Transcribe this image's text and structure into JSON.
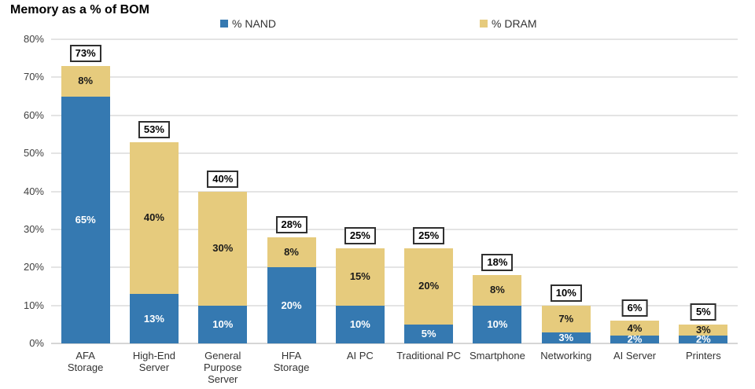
{
  "title": "Memory as a % of BOM",
  "legend": {
    "nand_label": "% NAND",
    "dram_label": "% DRAM"
  },
  "colors": {
    "nand": "#3579B1",
    "dram": "#E6CB7D",
    "nand_label_text": "#FFFFFF",
    "dram_label_text": "#1A1A1A",
    "gridline": "#E4E4E4",
    "baseline": "#D6D6D6"
  },
  "chart_data": {
    "type": "bar",
    "stacked": true,
    "title": "Memory as a % of BOM",
    "categories": [
      "AFA Storage",
      "High-End Server",
      "General Purpose Server",
      "HFA Storage",
      "AI PC",
      "Traditional PC",
      "Smartphone",
      "Networking",
      "AI Server",
      "Printers"
    ],
    "category_lines": [
      [
        "AFA",
        "Storage"
      ],
      [
        "High-End",
        "Server"
      ],
      [
        "General",
        "Purpose",
        "Server"
      ],
      [
        "HFA",
        "Storage"
      ],
      [
        "AI PC"
      ],
      [
        "Traditional PC"
      ],
      [
        "Smartphone"
      ],
      [
        "Networking"
      ],
      [
        "AI Server"
      ],
      [
        "Printers"
      ]
    ],
    "series": [
      {
        "name": "% NAND",
        "color": "#3579B1",
        "label_color": "#FFFFFF",
        "values": [
          65,
          13,
          10,
          20,
          10,
          5,
          10,
          3,
          2,
          2
        ]
      },
      {
        "name": "% DRAM",
        "color": "#E6CB7D",
        "label_color": "#1A1A1A",
        "values": [
          8,
          40,
          30,
          8,
          15,
          20,
          8,
          7,
          4,
          3
        ]
      }
    ],
    "totals": [
      73,
      53,
      40,
      28,
      25,
      25,
      18,
      10,
      6,
      5
    ],
    "xlabel": "",
    "ylabel": "",
    "ylim": [
      0,
      80
    ],
    "yticks": [
      0,
      10,
      20,
      30,
      40,
      50,
      60,
      70,
      80
    ],
    "ytick_labels": [
      "0%",
      "10%",
      "20%",
      "30%",
      "40%",
      "50%",
      "60%",
      "70%",
      "80%"
    ],
    "value_suffix": "%",
    "grid": "horizontal",
    "legend_position": "top"
  }
}
